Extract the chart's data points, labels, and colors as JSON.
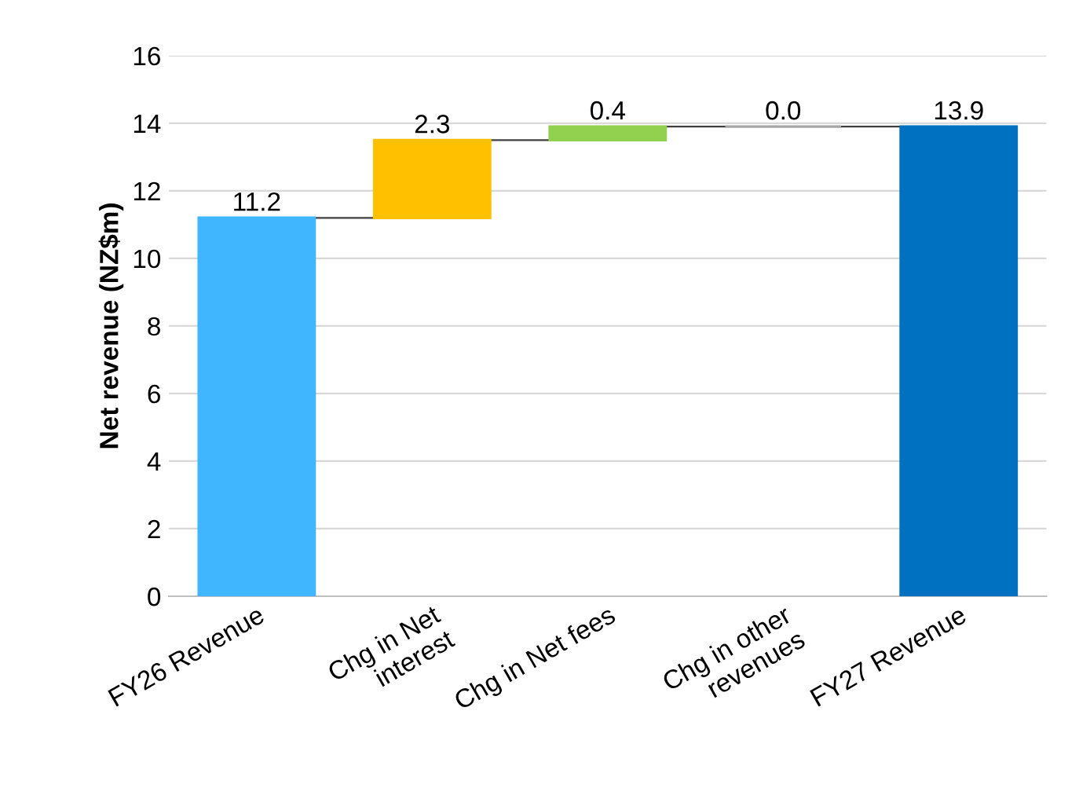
{
  "chart_data": {
    "type": "bar",
    "ylabel": "Net revenue (NZ$m)",
    "categories": [
      "FY26 Revenue",
      "Chg in Net\ninterest",
      "Chg in Net fees",
      "Chg in other\nrevenues",
      "FY27 Revenue"
    ],
    "values": [
      11.2,
      2.3,
      0.4,
      0.0,
      13.9
    ],
    "base": [
      0,
      11.2,
      13.5,
      13.9,
      0
    ],
    "colors": [
      "#3fb6ff",
      "#ffc000",
      "#92d050",
      "#a5a5a5",
      "#0070c0"
    ],
    "ylim": [
      0,
      16
    ],
    "yticks": [
      0,
      2,
      4,
      6,
      8,
      10,
      12,
      14,
      16
    ],
    "value_labels": [
      "11.2",
      "2.3",
      "0.4",
      "0.0",
      "13.9"
    ],
    "grid": "y"
  }
}
